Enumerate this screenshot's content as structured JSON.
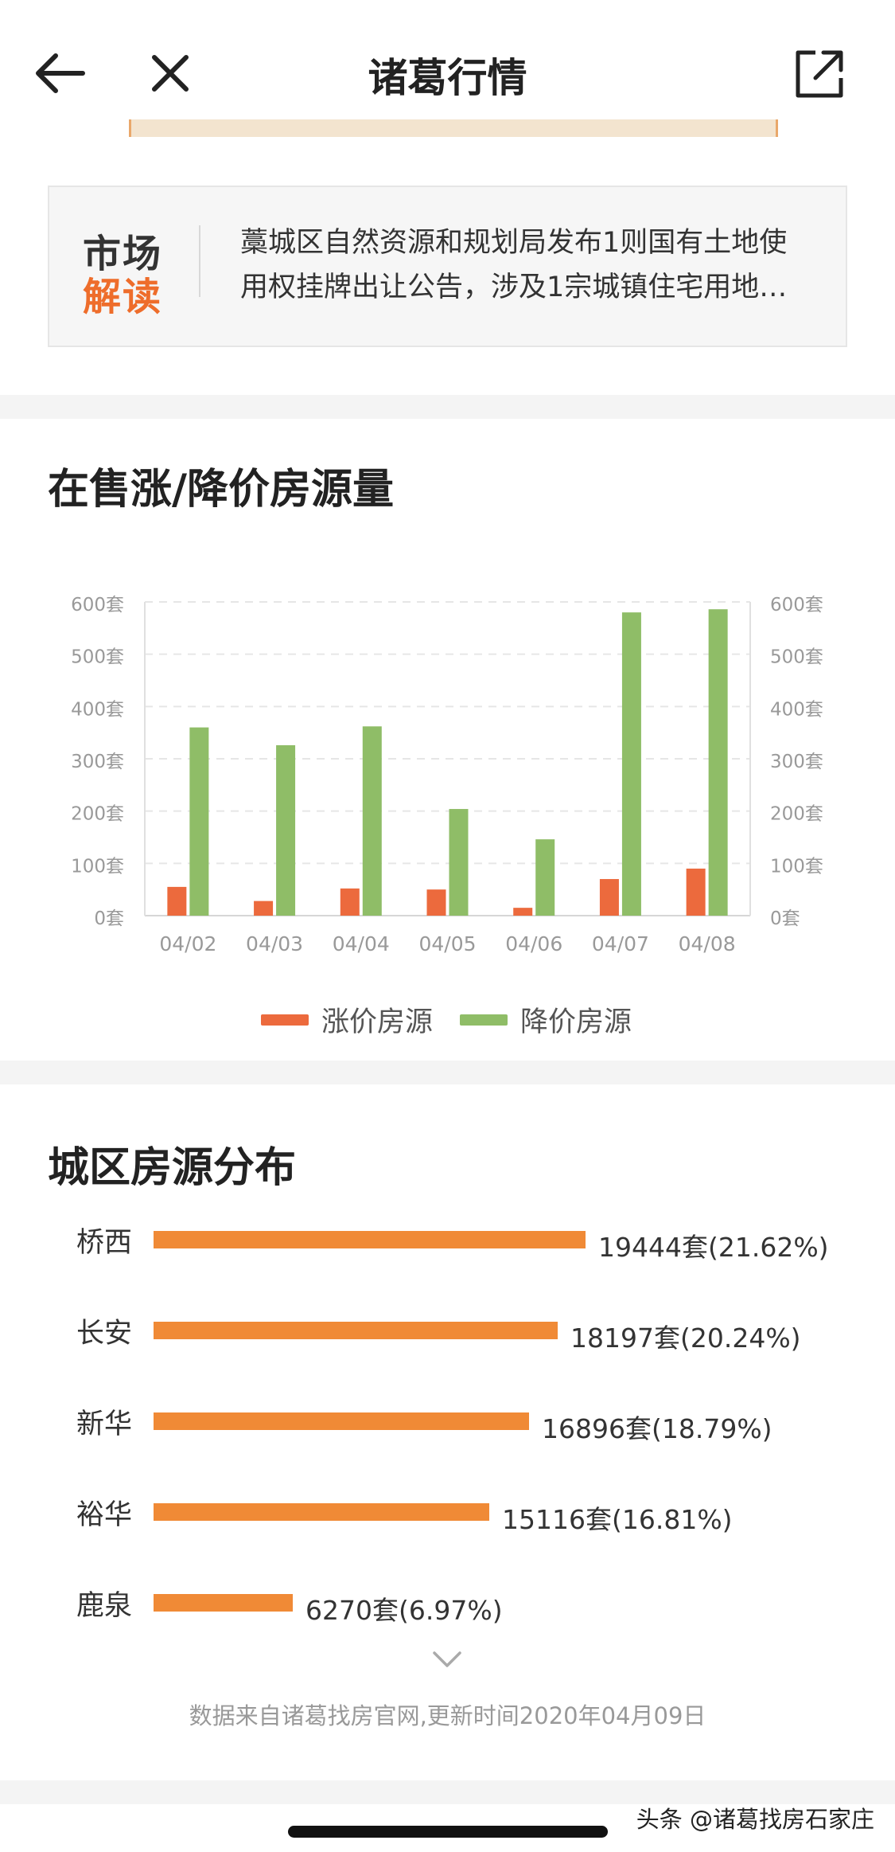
{
  "nav": {
    "title": "诸葛行情",
    "icons": {
      "back": "arrow-left-icon",
      "close": "close-icon",
      "share": "share-external-icon"
    }
  },
  "market": {
    "logo_line1": "市场",
    "logo_line2": "解读",
    "text_line1": "藁城区自然资源和规划局发布1则国有土地使",
    "text_line2": "用权挂牌出让公告，涉及1宗城镇住宅用地…"
  },
  "chart_section": {
    "title": "在售涨/降价房源量"
  },
  "chart_data": {
    "type": "bar",
    "categories": [
      "04/02",
      "04/03",
      "04/04",
      "04/05",
      "04/06",
      "04/07",
      "04/08"
    ],
    "series": [
      {
        "name": "涨价房源",
        "color": "#ec6a3d",
        "values": [
          55,
          28,
          52,
          50,
          15,
          70,
          90
        ]
      },
      {
        "name": "降价房源",
        "color": "#8fbd67",
        "values": [
          360,
          326,
          362,
          204,
          146,
          580,
          586
        ]
      }
    ],
    "y_ticks": [
      "0套",
      "100套",
      "200套",
      "300套",
      "400套",
      "500套",
      "600套"
    ],
    "ylim": [
      0,
      600
    ],
    "grid": true,
    "legend": "bottom"
  },
  "district_section": {
    "title": "城区房源分布",
    "rows": [
      {
        "name": "桥西",
        "value": 19444,
        "label": "19444套(21.62%)"
      },
      {
        "name": "长安",
        "value": 18197,
        "label": "18197套(20.24%)"
      },
      {
        "name": "新华",
        "value": 16896,
        "label": "16896套(18.79%)"
      },
      {
        "name": "裕华",
        "value": 15116,
        "label": "15116套(16.81%)"
      },
      {
        "name": "鹿泉",
        "value": 6270,
        "label": "6270套(6.97%)"
      }
    ],
    "expand_icon": "chevron-down-icon",
    "footnote": "数据来自诸葛找房官网,更新时间2020年04月09日"
  },
  "watermark": "头条 @诸葛找房石家庄"
}
